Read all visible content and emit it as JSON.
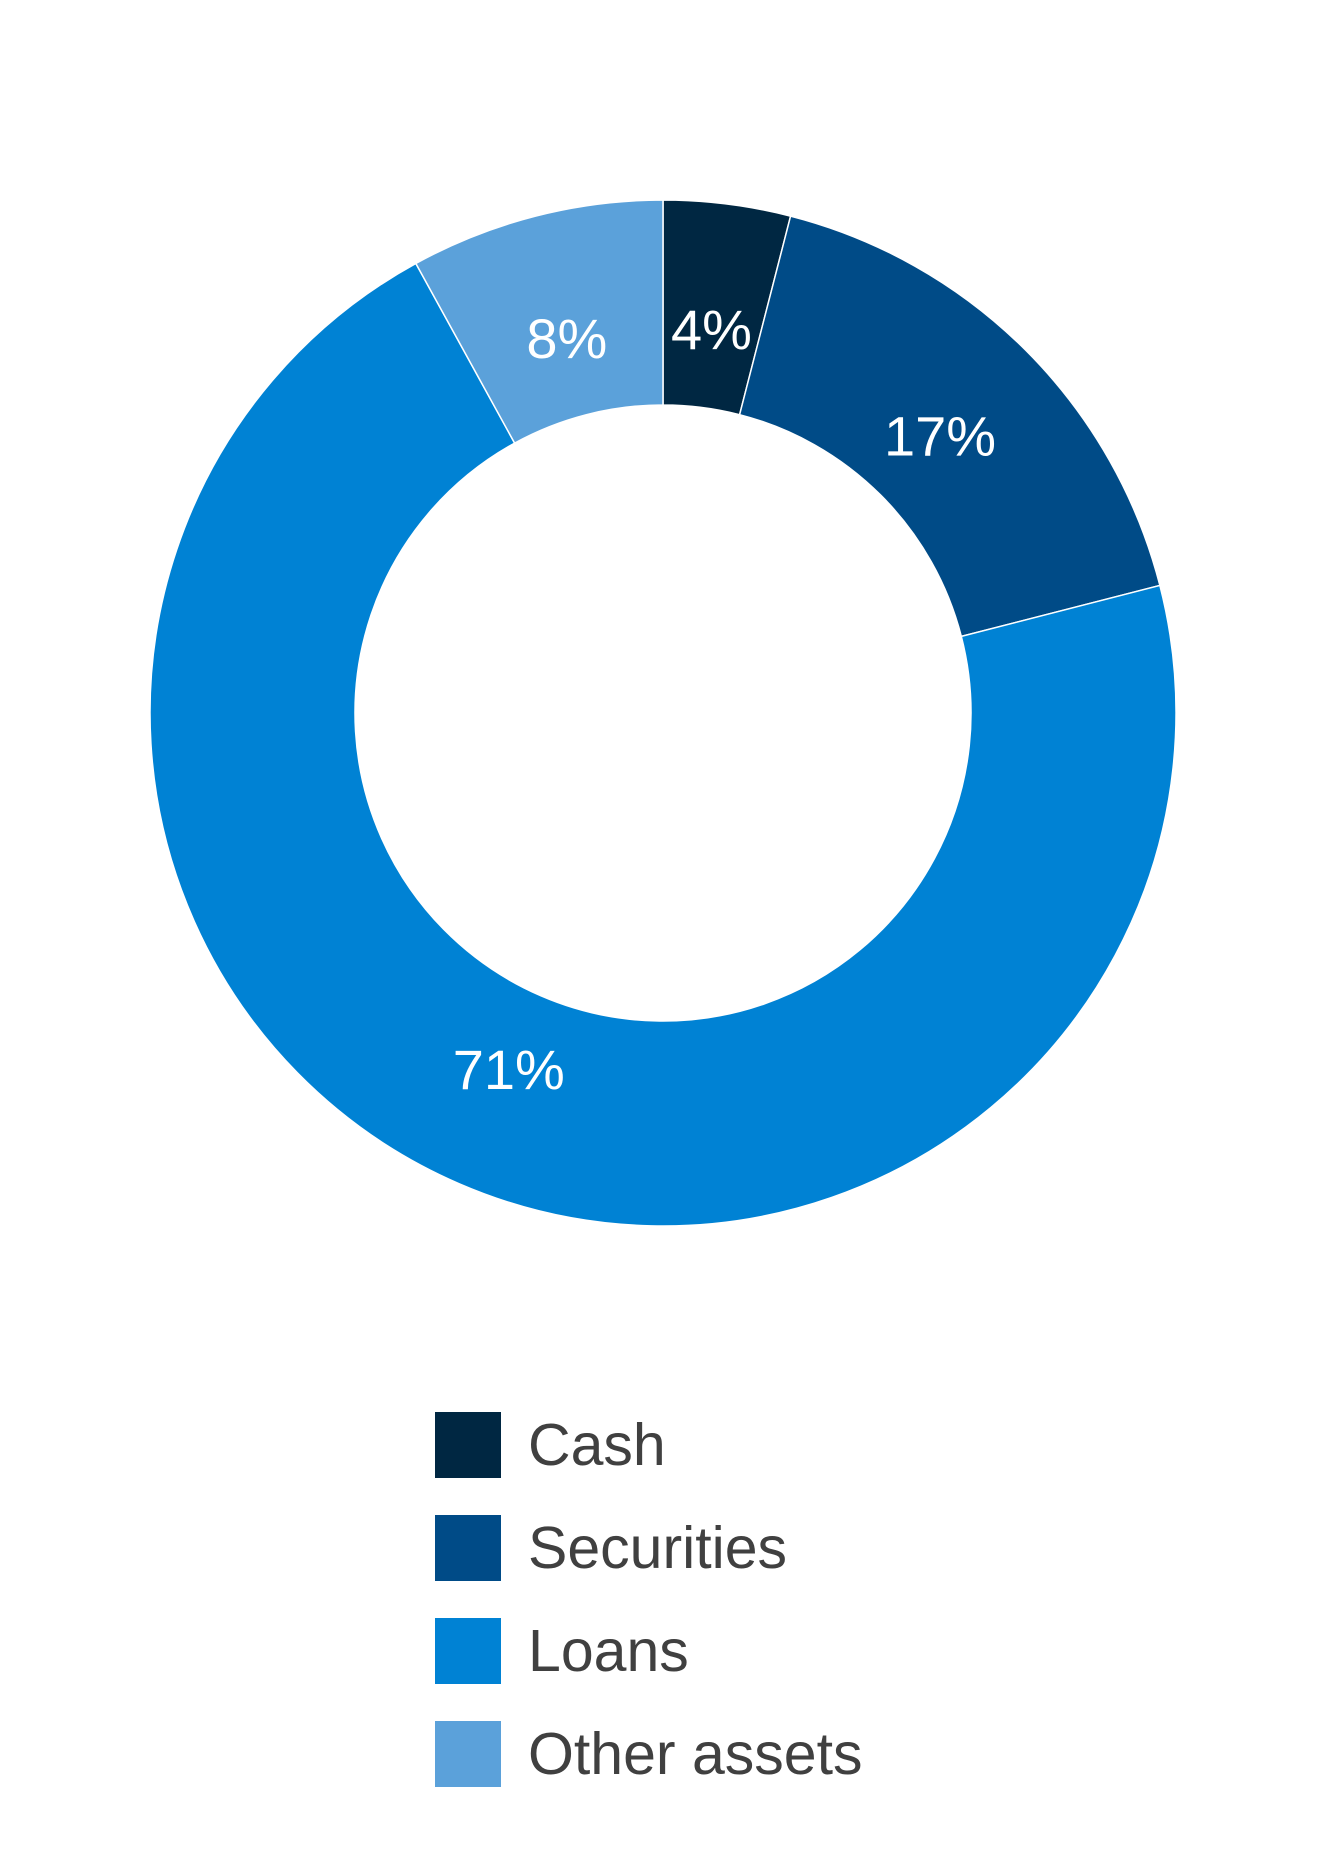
{
  "chart_data": {
    "type": "pie",
    "subtype": "donut",
    "categories": [
      "Cash",
      "Securities",
      "Loans",
      "Other assets"
    ],
    "values": [
      4,
      17,
      71,
      8
    ],
    "value_labels": [
      "4%",
      "17%",
      "71%",
      "8%"
    ],
    "colors": [
      "#002742",
      "#004B87",
      "#0082D4",
      "#5BA1DA"
    ],
    "legend_position": "bottom",
    "start_angle": "top, clockwise"
  }
}
